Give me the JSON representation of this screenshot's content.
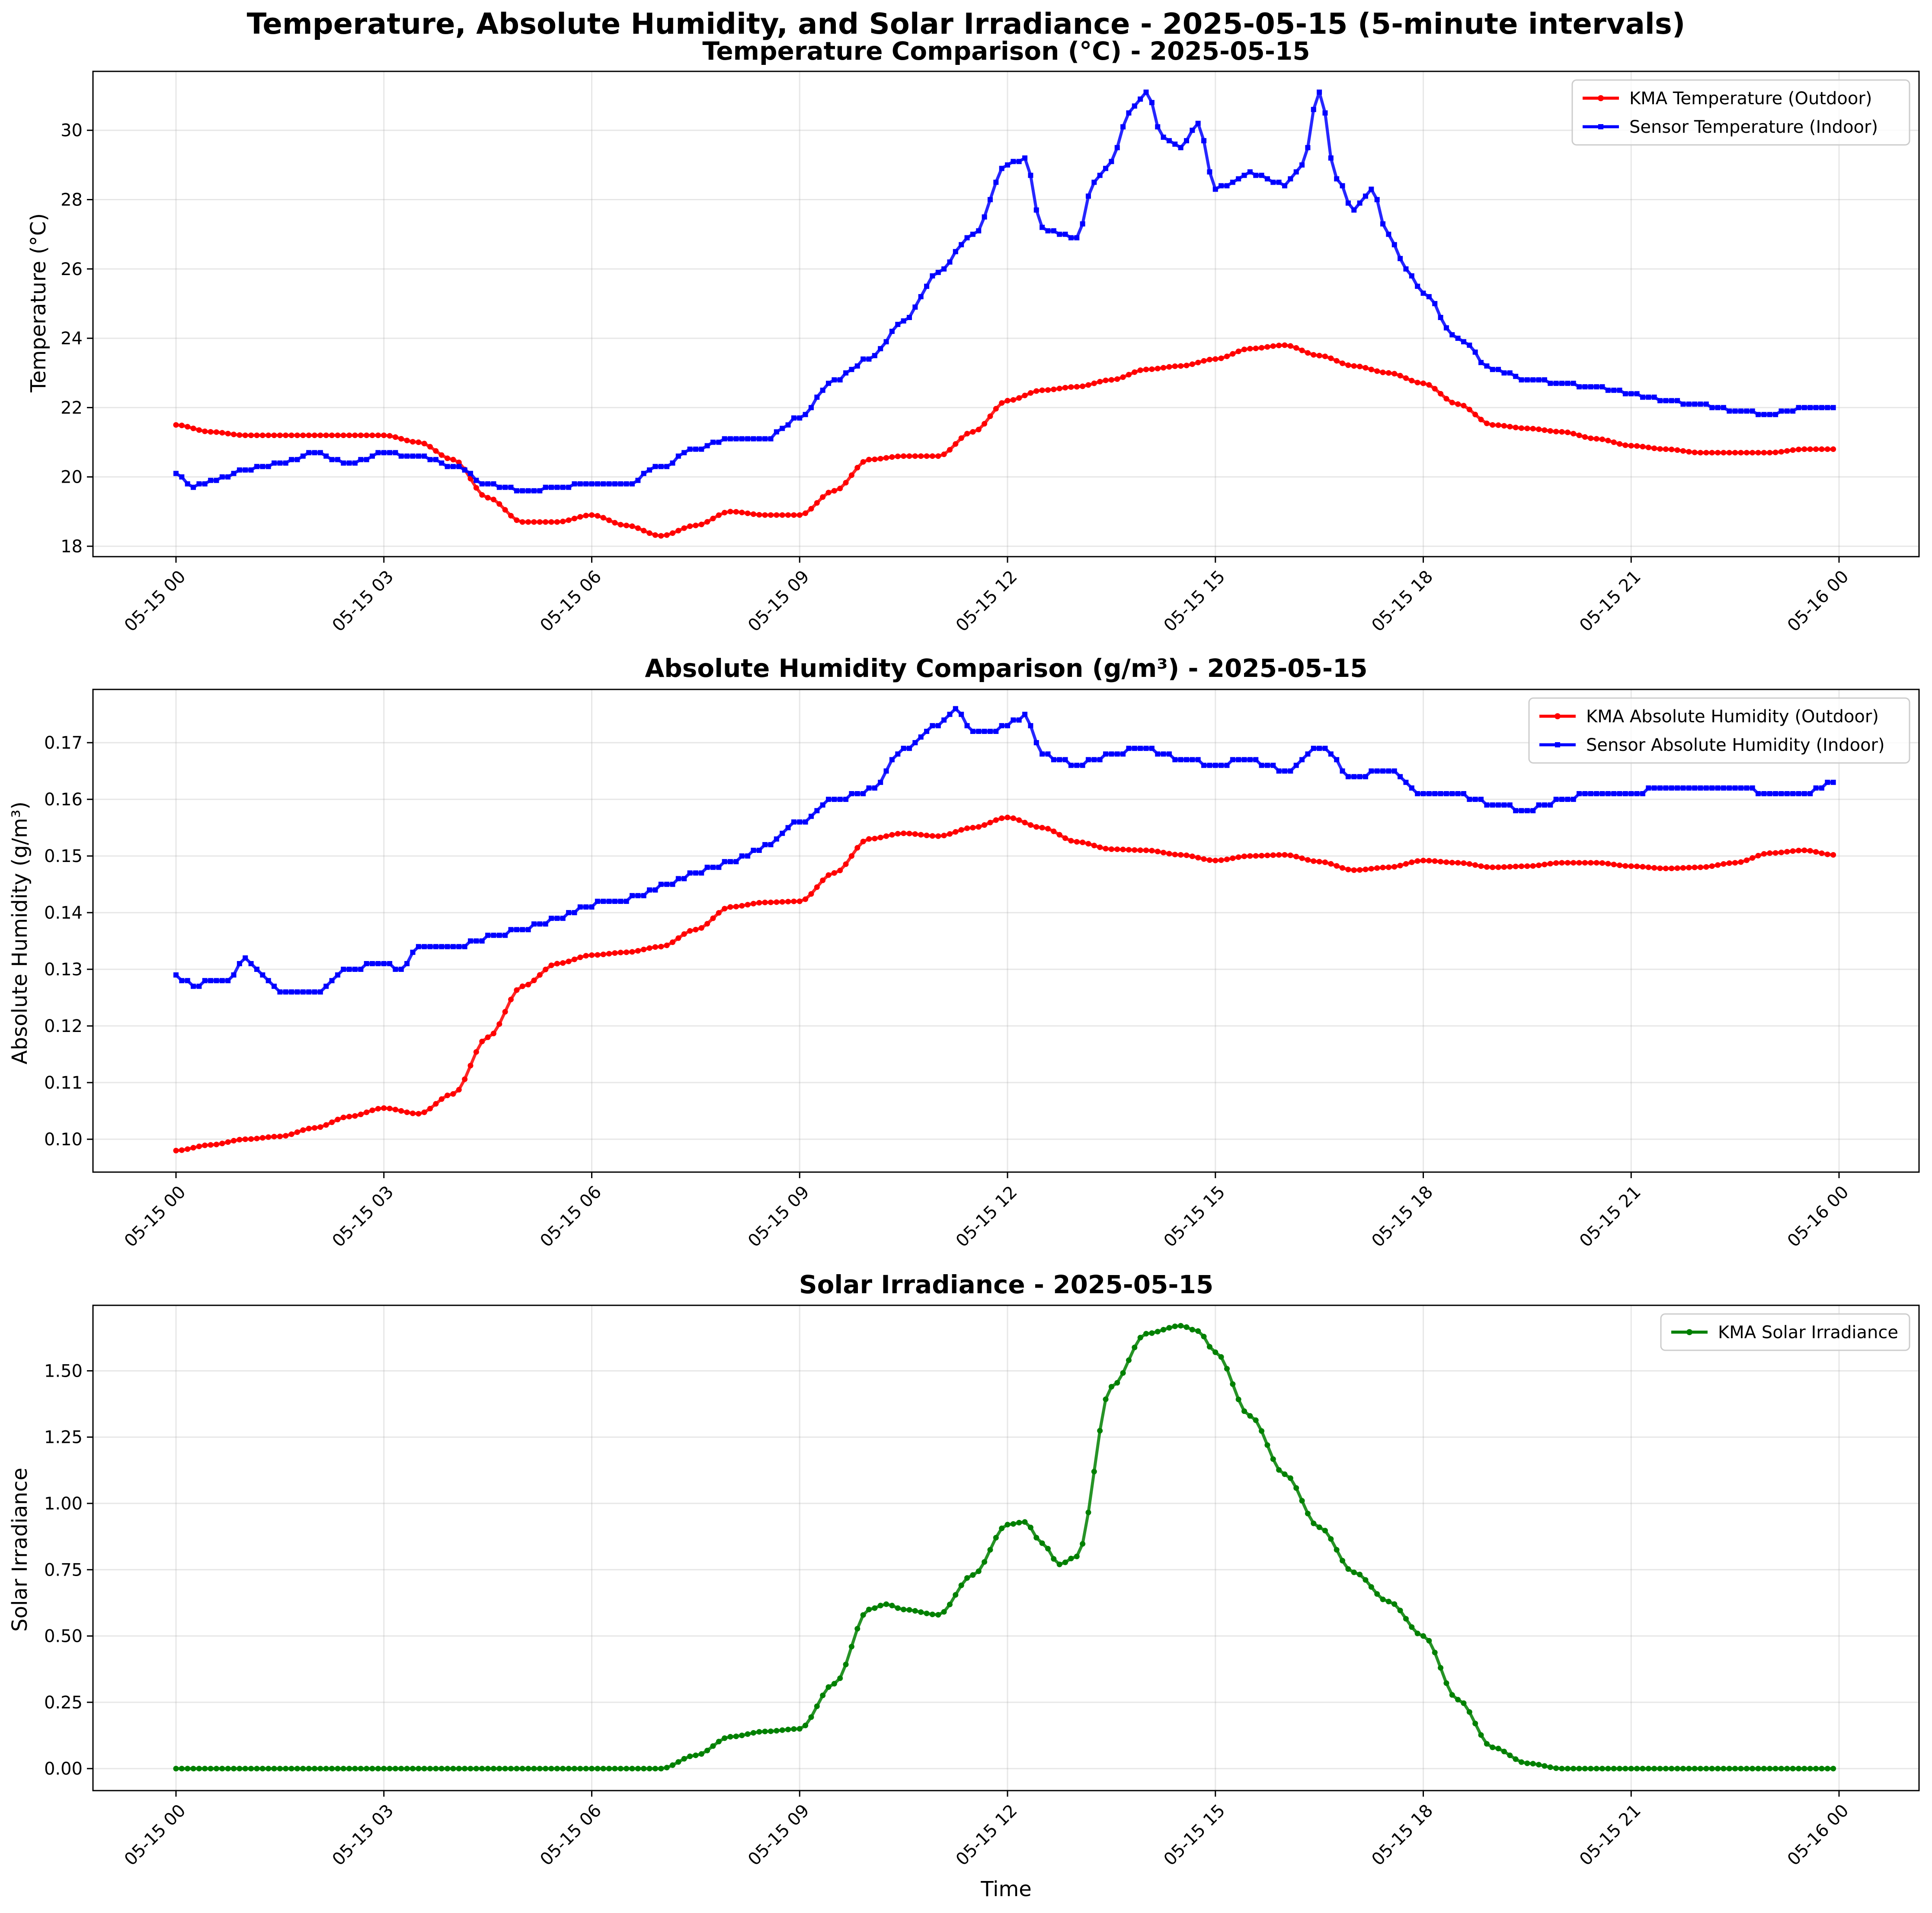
{
  "figure": {
    "suptitle": "Temperature, Absolute Humidity, and Solar Irradiance - 2025-05-15 (5-minute intervals)",
    "xlabel": "Time"
  },
  "chart_data": [
    {
      "type": "line",
      "title": "Temperature Comparison (°C) - 2025-05-15",
      "xlabel": "",
      "ylabel": "Temperature (°C)",
      "x_range": [
        "05-15 00:00",
        "05-16 00:00"
      ],
      "x_ticks": [
        "05-15 00",
        "05-15 03",
        "05-15 06",
        "05-15 09",
        "05-15 12",
        "05-15 15",
        "05-15 18",
        "05-15 21",
        "05-16 00"
      ],
      "ylim": [
        17.7,
        31.7
      ],
      "y_ticks": [
        18,
        20,
        22,
        24,
        26,
        28,
        30
      ],
      "grid": true,
      "legend_position": "upper right",
      "series": [
        {
          "name": "KMA Temperature (Outdoor)",
          "color": "#ff0000",
          "marker": "circle",
          "x_hours": [
            0,
            0.5,
            1,
            2,
            3,
            3.5,
            4,
            4.5,
            5,
            5.5,
            6,
            6.5,
            7,
            7.5,
            8,
            8.5,
            9,
            9.5,
            10,
            10.5,
            11,
            11.5,
            12,
            12.5,
            13,
            13.5,
            14,
            14.5,
            15,
            15.5,
            16,
            16.5,
            17,
            17.5,
            18,
            18.5,
            19,
            19.5,
            20,
            20.5,
            21,
            21.5,
            22,
            22.5,
            23,
            23.5,
            23.92
          ],
          "values": [
            21.5,
            21.3,
            21.2,
            21.2,
            21.2,
            21.0,
            20.5,
            19.4,
            18.7,
            18.7,
            18.9,
            18.6,
            18.3,
            18.6,
            19.0,
            18.9,
            18.9,
            19.6,
            20.5,
            20.6,
            20.6,
            21.3,
            22.2,
            22.5,
            22.6,
            22.8,
            23.1,
            23.2,
            23.4,
            23.7,
            23.8,
            23.5,
            23.2,
            23.0,
            22.7,
            22.1,
            21.5,
            21.4,
            21.3,
            21.1,
            20.9,
            20.8,
            20.7,
            20.7,
            20.7,
            20.8,
            20.8
          ]
        },
        {
          "name": "Sensor Temperature (Indoor)",
          "color": "#0000ff",
          "marker": "square",
          "x_hours": [
            0,
            0.25,
            0.5,
            1,
            1.5,
            2,
            2.5,
            3,
            3.5,
            4,
            4.5,
            5,
            5.5,
            6,
            6.5,
            7,
            7.5,
            8,
            8.5,
            9,
            9.5,
            10,
            10.5,
            11,
            11.5,
            12,
            12.25,
            12.5,
            12.75,
            13,
            13.25,
            13.5,
            13.75,
            14,
            14.25,
            14.5,
            14.75,
            15,
            15.25,
            15.5,
            15.75,
            16,
            16.25,
            16.5,
            16.75,
            17,
            17.25,
            17.5,
            17.75,
            18,
            18.5,
            19,
            19.5,
            20,
            20.5,
            21,
            21.5,
            22,
            22.5,
            23,
            23.5,
            23.92
          ],
          "values": [
            20.1,
            19.7,
            19.9,
            20.2,
            20.4,
            20.7,
            20.4,
            20.7,
            20.6,
            20.3,
            19.8,
            19.6,
            19.7,
            19.8,
            19.8,
            20.3,
            20.8,
            21.1,
            21.1,
            21.7,
            22.8,
            23.4,
            24.5,
            25.9,
            27.0,
            29.0,
            29.2,
            27.2,
            27.0,
            26.9,
            28.5,
            29.1,
            30.5,
            31.1,
            29.8,
            29.5,
            30.2,
            28.3,
            28.5,
            28.8,
            28.6,
            28.4,
            29.0,
            31.1,
            28.6,
            27.7,
            28.3,
            27.0,
            26.0,
            25.3,
            24.0,
            23.1,
            22.8,
            22.7,
            22.6,
            22.4,
            22.2,
            22.1,
            21.9,
            21.8,
            22.0,
            22.0
          ]
        }
      ]
    },
    {
      "type": "line",
      "title": "Absolute Humidity Comparison (g/m³) - 2025-05-15",
      "xlabel": "",
      "ylabel": "Absolute Humidity (g/m³)",
      "x_range": [
        "05-15 00:00",
        "05-16 00:00"
      ],
      "x_ticks": [
        "05-15 00",
        "05-15 03",
        "05-15 06",
        "05-15 09",
        "05-15 12",
        "05-15 15",
        "05-15 18",
        "05-15 21",
        "05-16 00"
      ],
      "ylim": [
        0.0942,
        0.1794
      ],
      "y_ticks": [
        "0.10",
        "0.11",
        "0.12",
        "0.13",
        "0.14",
        "0.15",
        "0.16",
        "0.17"
      ],
      "grid": true,
      "legend_position": "upper right",
      "series": [
        {
          "name": "KMA Absolute Humidity (Outdoor)",
          "color": "#ff0000",
          "marker": "circle",
          "x_hours": [
            0,
            0.5,
            1,
            1.5,
            2,
            2.5,
            3,
            3.5,
            4,
            4.5,
            5,
            5.5,
            6,
            6.5,
            7,
            7.5,
            8,
            8.5,
            9,
            9.5,
            10,
            10.5,
            11,
            11.5,
            12,
            12.5,
            13,
            13.5,
            14,
            14.5,
            15,
            15.5,
            16,
            16.5,
            17,
            17.5,
            18,
            18.5,
            19,
            19.5,
            20,
            20.5,
            21,
            21.5,
            22,
            22.5,
            23,
            23.5,
            23.92
          ],
          "values": [
            0.098,
            0.099,
            0.1,
            0.1005,
            0.102,
            0.104,
            0.1055,
            0.1045,
            0.108,
            0.118,
            0.127,
            0.131,
            0.1325,
            0.133,
            0.134,
            0.137,
            0.141,
            0.1418,
            0.142,
            0.147,
            0.153,
            0.154,
            0.1535,
            0.155,
            0.1568,
            0.155,
            0.1525,
            0.1512,
            0.151,
            0.1502,
            0.1492,
            0.15,
            0.1502,
            0.149,
            0.1475,
            0.148,
            0.1492,
            0.1488,
            0.148,
            0.1482,
            0.1488,
            0.1488,
            0.1482,
            0.1478,
            0.148,
            0.1488,
            0.1505,
            0.151,
            0.1502
          ]
        },
        {
          "name": "Sensor Absolute Humidity (Indoor)",
          "color": "#0000ff",
          "marker": "square",
          "x_hours": [
            0,
            0.25,
            0.5,
            0.75,
            1,
            1.25,
            1.5,
            1.75,
            2,
            2.5,
            3,
            3.25,
            3.5,
            4,
            4.5,
            5,
            5.5,
            6,
            6.5,
            7,
            7.5,
            8,
            8.5,
            9,
            9.5,
            10,
            10.5,
            11,
            11.25,
            11.5,
            11.75,
            12,
            12.25,
            12.5,
            13,
            13.5,
            14,
            14.5,
            15,
            15.5,
            16,
            16.5,
            17,
            17.5,
            18,
            18.5,
            19,
            19.5,
            20,
            20.5,
            21,
            21.5,
            22,
            22.5,
            23,
            23.5,
            23.92
          ],
          "values": [
            0.129,
            0.127,
            0.128,
            0.128,
            0.132,
            0.129,
            0.1262,
            0.1262,
            0.126,
            0.13,
            0.131,
            0.13,
            0.134,
            0.134,
            0.1355,
            0.137,
            0.139,
            0.1415,
            0.1425,
            0.1445,
            0.147,
            0.149,
            0.1515,
            0.156,
            0.16,
            0.1615,
            0.169,
            0.173,
            0.176,
            0.172,
            0.172,
            0.173,
            0.175,
            0.168,
            0.166,
            0.168,
            0.169,
            0.167,
            0.166,
            0.167,
            0.165,
            0.169,
            0.164,
            0.165,
            0.161,
            0.161,
            0.159,
            0.158,
            0.16,
            0.161,
            0.161,
            0.162,
            0.162,
            0.162,
            0.161,
            0.161,
            0.163
          ]
        }
      ]
    },
    {
      "type": "line",
      "title": "Solar Irradiance - 2025-05-15",
      "xlabel": "Time",
      "ylabel": "Solar Irradiance",
      "x_range": [
        "05-15 00:00",
        "05-16 00:00"
      ],
      "x_ticks": [
        "05-15 00",
        "05-15 03",
        "05-15 06",
        "05-15 09",
        "05-15 12",
        "05-15 15",
        "05-15 18",
        "05-15 21",
        "05-16 00"
      ],
      "ylim": [
        -0.083,
        1.747
      ],
      "y_ticks": [
        "0.00",
        "0.25",
        "0.50",
        "0.75",
        "1.00",
        "1.25",
        "1.50"
      ],
      "grid": true,
      "legend_position": "upper right",
      "series": [
        {
          "name": "KMA Solar Irradiance",
          "color": "#008000",
          "marker": "circle",
          "x_hours": [
            0,
            7,
            7.5,
            8,
            8.5,
            9,
            9.5,
            10,
            10.25,
            10.5,
            11,
            11.5,
            12,
            12.25,
            12.5,
            12.75,
            13,
            13.5,
            14,
            14.5,
            14.75,
            15,
            15.5,
            16,
            16.5,
            17,
            17.5,
            18,
            18.5,
            19,
            19.5,
            20,
            21,
            22,
            23,
            23.92
          ],
          "values": [
            0,
            0,
            0.05,
            0.12,
            0.14,
            0.15,
            0.32,
            0.6,
            0.62,
            0.6,
            0.58,
            0.73,
            0.92,
            0.93,
            0.85,
            0.77,
            0.8,
            1.44,
            1.64,
            1.67,
            1.65,
            1.57,
            1.33,
            1.11,
            0.91,
            0.74,
            0.63,
            0.5,
            0.26,
            0.08,
            0.02,
            0,
            0,
            0,
            0,
            0
          ]
        }
      ]
    }
  ]
}
